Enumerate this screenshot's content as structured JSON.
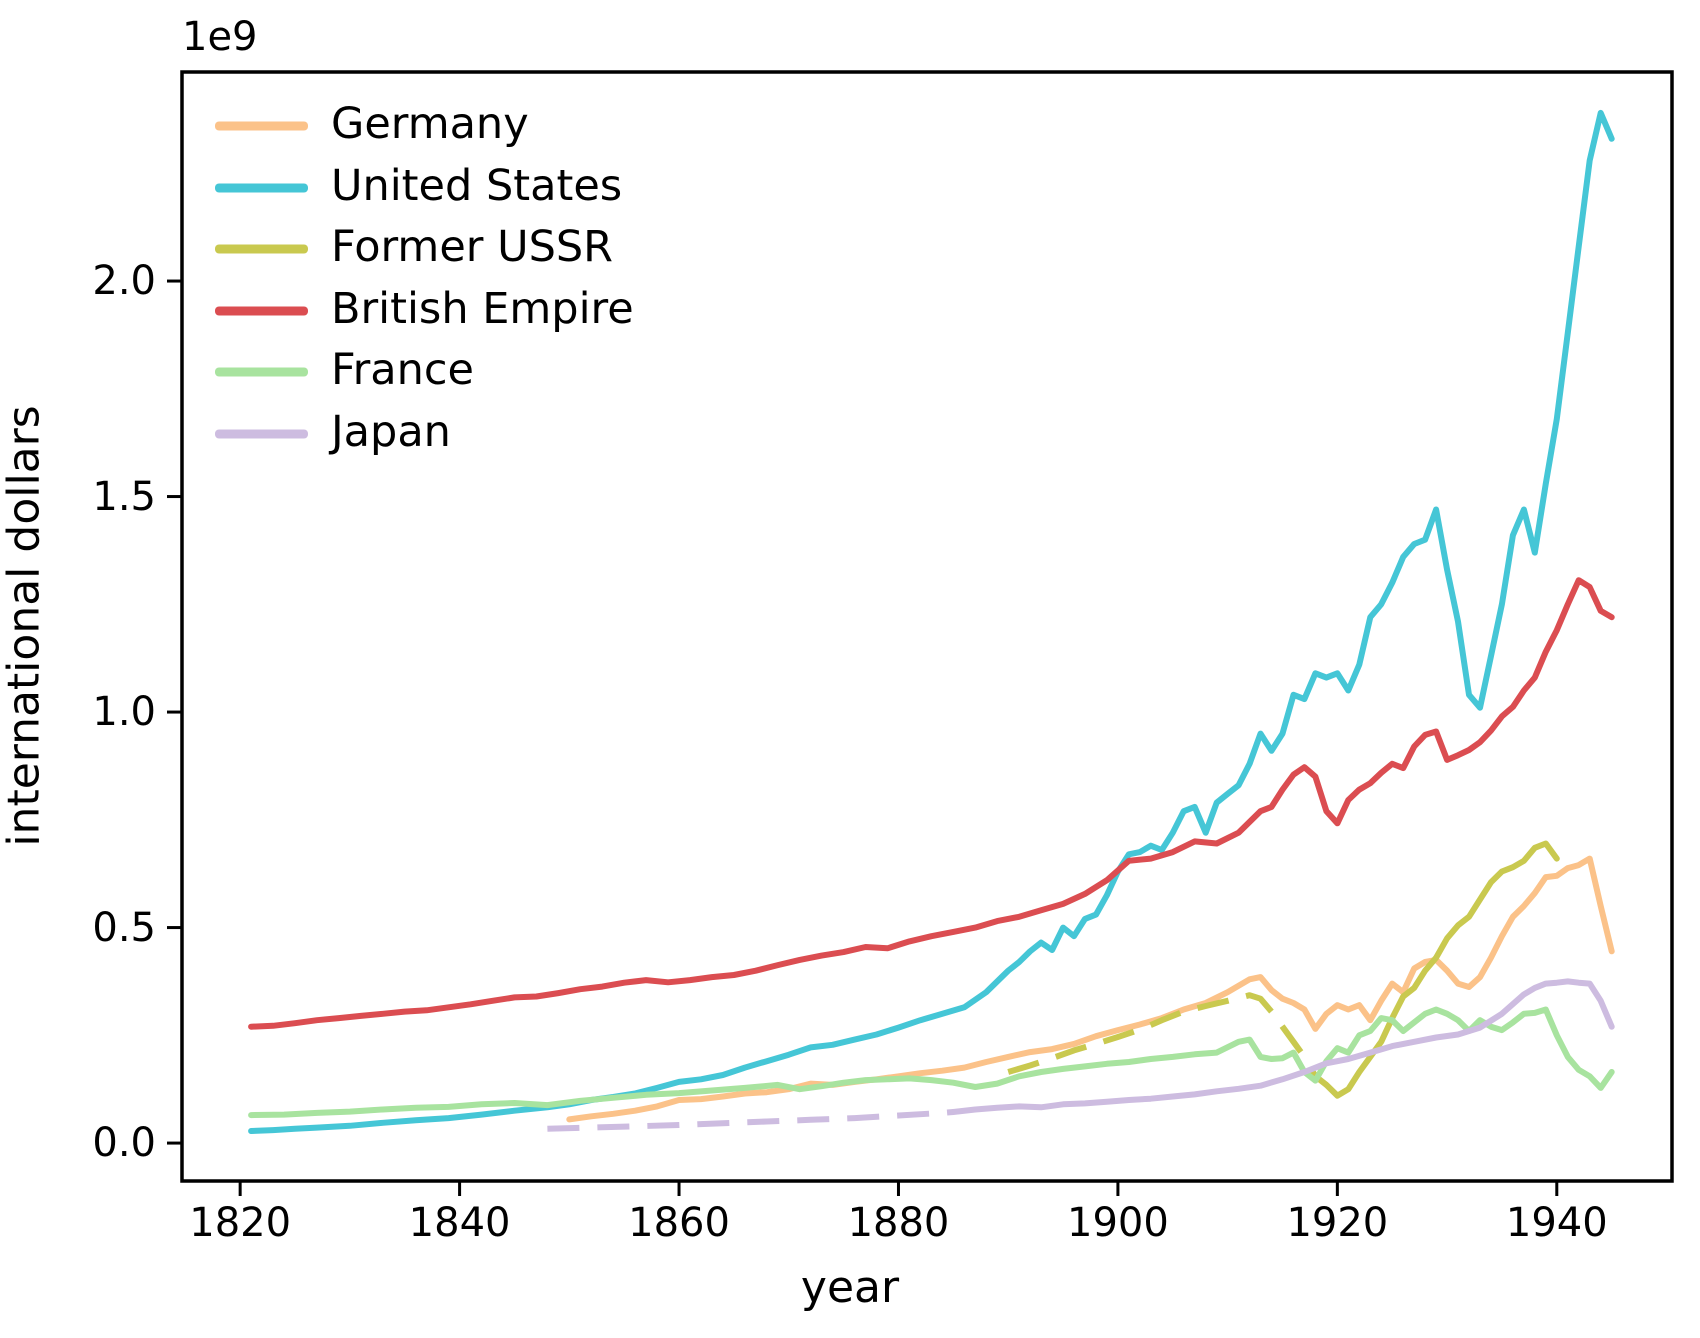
{
  "chart_data": {
    "type": "line",
    "title": "",
    "xlabel": "year",
    "ylabel": "international dollars",
    "offset_text": "1e9",
    "values_unit": "1e9 international dollars",
    "xlim": [
      1814.7,
      1950.5
    ],
    "ylim_e9": [
      -0.088,
      2.485
    ],
    "xticks": [
      1820,
      1840,
      1860,
      1880,
      1900,
      1920,
      1940
    ],
    "yticks_e9": [
      "0.0",
      "0.5",
      "1.0",
      "1.5",
      "2.0"
    ],
    "grid": false,
    "legend": {
      "position": "upper left",
      "frame": false
    },
    "series": [
      {
        "name": "Germany",
        "color": "#FBC289",
        "segments": [
          {
            "style": "solid",
            "x": [
              1850,
              1852,
              1854,
              1856,
              1858,
              1860,
              1862,
              1864,
              1866,
              1868,
              1870,
              1872,
              1874,
              1876,
              1878,
              1880,
              1882,
              1884,
              1886,
              1888,
              1890,
              1892,
              1894,
              1896,
              1898,
              1900,
              1902,
              1904,
              1906,
              1908,
              1910,
              1912,
              1913,
              1914,
              1915,
              1916,
              1917,
              1918,
              1919,
              1920,
              1921,
              1922,
              1923,
              1924,
              1925,
              1926,
              1927,
              1928,
              1929,
              1930,
              1931,
              1932,
              1933,
              1934,
              1935,
              1936,
              1937,
              1938,
              1939,
              1940,
              1941,
              1942,
              1943,
              1944,
              1945
            ],
            "y": [
              0.055,
              0.062,
              0.068,
              0.075,
              0.085,
              0.1,
              0.102,
              0.108,
              0.115,
              0.118,
              0.125,
              0.138,
              0.135,
              0.142,
              0.148,
              0.155,
              0.162,
              0.168,
              0.175,
              0.188,
              0.2,
              0.211,
              0.218,
              0.23,
              0.248,
              0.262,
              0.275,
              0.29,
              0.31,
              0.325,
              0.35,
              0.38,
              0.385,
              0.355,
              0.335,
              0.325,
              0.31,
              0.265,
              0.3,
              0.32,
              0.31,
              0.32,
              0.285,
              0.33,
              0.37,
              0.35,
              0.405,
              0.42,
              0.425,
              0.4,
              0.37,
              0.362,
              0.385,
              0.43,
              0.48,
              0.525,
              0.55,
              0.58,
              0.617,
              0.62,
              0.638,
              0.645,
              0.66,
              0.55,
              0.445
            ]
          }
        ]
      },
      {
        "name": "United States",
        "color": "#45C6D6",
        "segments": [
          {
            "style": "solid",
            "x": [
              1821,
              1823,
              1825,
              1827,
              1830,
              1833,
              1836,
              1839,
              1842,
              1845,
              1848,
              1850,
              1852,
              1854,
              1856,
              1858,
              1860,
              1862,
              1864,
              1866,
              1868,
              1870,
              1872,
              1874,
              1876,
              1878,
              1880,
              1882,
              1884,
              1886,
              1888,
              1890,
              1891,
              1892,
              1893,
              1894,
              1895,
              1896,
              1897,
              1898,
              1899,
              1900,
              1901,
              1902,
              1903,
              1904,
              1905,
              1906,
              1907,
              1908,
              1909,
              1910,
              1911,
              1912,
              1913,
              1914,
              1915,
              1916,
              1917,
              1918,
              1919,
              1920,
              1921,
              1922,
              1923,
              1924,
              1925,
              1926,
              1927,
              1928,
              1929,
              1930,
              1931,
              1932,
              1933,
              1934,
              1935,
              1936,
              1937,
              1938,
              1939,
              1940,
              1941,
              1942,
              1943,
              1944,
              1945
            ],
            "y": [
              0.028,
              0.03,
              0.033,
              0.036,
              0.04,
              0.047,
              0.053,
              0.058,
              0.066,
              0.075,
              0.083,
              0.09,
              0.1,
              0.107,
              0.115,
              0.128,
              0.142,
              0.148,
              0.158,
              0.175,
              0.19,
              0.205,
              0.222,
              0.228,
              0.24,
              0.252,
              0.268,
              0.285,
              0.3,
              0.315,
              0.35,
              0.4,
              0.42,
              0.445,
              0.465,
              0.448,
              0.5,
              0.48,
              0.52,
              0.53,
              0.575,
              0.63,
              0.67,
              0.675,
              0.69,
              0.68,
              0.72,
              0.77,
              0.78,
              0.72,
              0.79,
              0.81,
              0.83,
              0.88,
              0.95,
              0.91,
              0.95,
              1.04,
              1.03,
              1.09,
              1.08,
              1.09,
              1.05,
              1.11,
              1.22,
              1.25,
              1.3,
              1.36,
              1.39,
              1.4,
              1.47,
              1.33,
              1.21,
              1.04,
              1.01,
              1.13,
              1.25,
              1.41,
              1.47,
              1.37,
              1.53,
              1.68,
              1.88,
              2.08,
              2.28,
              2.39,
              2.33
            ]
          }
        ]
      },
      {
        "name": "Former USSR",
        "color": "#C9C94F",
        "segments": [
          {
            "style": "dashed",
            "x": [
              1890,
              1892,
              1894,
              1896,
              1898,
              1900,
              1902,
              1904,
              1906,
              1908,
              1910,
              1912,
              1913,
              1914,
              1915,
              1916,
              1917,
              1918,
              1919
            ],
            "y": [
              0.165,
              0.18,
              0.197,
              0.215,
              0.23,
              0.246,
              0.263,
              0.285,
              0.305,
              0.318,
              0.33,
              0.343,
              0.335,
              0.305,
              0.27,
              0.235,
              0.2,
              0.155,
              0.135
            ]
          },
          {
            "style": "solid",
            "x": [
              1919,
              1920,
              1921,
              1922,
              1923,
              1924,
              1925,
              1926,
              1927,
              1928,
              1929,
              1930,
              1931,
              1932,
              1933,
              1934,
              1935,
              1936,
              1937,
              1938,
              1939,
              1940
            ],
            "y": [
              0.135,
              0.11,
              0.125,
              0.165,
              0.2,
              0.235,
              0.29,
              0.34,
              0.36,
              0.4,
              0.43,
              0.475,
              0.505,
              0.525,
              0.565,
              0.605,
              0.63,
              0.64,
              0.655,
              0.685,
              0.695,
              0.66
            ]
          }
        ]
      },
      {
        "name": "British Empire",
        "color": "#DB4D51",
        "segments": [
          {
            "style": "solid",
            "x": [
              1821,
              1823,
              1825,
              1827,
              1829,
              1831,
              1833,
              1835,
              1837,
              1839,
              1841,
              1843,
              1845,
              1847,
              1849,
              1851,
              1853,
              1855,
              1857,
              1859,
              1861,
              1863,
              1865,
              1867,
              1869,
              1871,
              1873,
              1875,
              1877,
              1879,
              1881,
              1883,
              1885,
              1887,
              1889,
              1891,
              1893,
              1895,
              1897,
              1899,
              1901,
              1903,
              1905,
              1907,
              1909,
              1911,
              1913,
              1914,
              1915,
              1916,
              1917,
              1918,
              1919,
              1920,
              1921,
              1922,
              1923,
              1924,
              1925,
              1926,
              1927,
              1928,
              1929,
              1930,
              1931,
              1932,
              1933,
              1934,
              1935,
              1936,
              1937,
              1938,
              1939,
              1940,
              1941,
              1942,
              1943,
              1944,
              1945
            ],
            "y": [
              0.27,
              0.272,
              0.278,
              0.285,
              0.29,
              0.295,
              0.3,
              0.305,
              0.308,
              0.315,
              0.322,
              0.33,
              0.338,
              0.34,
              0.348,
              0.357,
              0.363,
              0.372,
              0.378,
              0.373,
              0.378,
              0.385,
              0.39,
              0.4,
              0.413,
              0.425,
              0.435,
              0.443,
              0.455,
              0.452,
              0.468,
              0.48,
              0.49,
              0.5,
              0.515,
              0.525,
              0.54,
              0.555,
              0.578,
              0.61,
              0.655,
              0.66,
              0.675,
              0.7,
              0.695,
              0.72,
              0.77,
              0.78,
              0.82,
              0.855,
              0.872,
              0.85,
              0.77,
              0.742,
              0.796,
              0.82,
              0.835,
              0.859,
              0.88,
              0.87,
              0.92,
              0.947,
              0.955,
              0.889,
              0.9,
              0.912,
              0.93,
              0.957,
              0.99,
              1.012,
              1.05,
              1.08,
              1.14,
              1.19,
              1.25,
              1.306,
              1.29,
              1.235,
              1.22
            ]
          }
        ]
      },
      {
        "name": "France",
        "color": "#A8E39F",
        "segments": [
          {
            "style": "solid",
            "x": [
              1821,
              1824,
              1827,
              1830,
              1833,
              1836,
              1839,
              1842,
              1845,
              1848,
              1851,
              1854,
              1857,
              1860,
              1863,
              1866,
              1869,
              1871,
              1873,
              1875,
              1877,
              1879,
              1881,
              1883,
              1885,
              1887,
              1889,
              1891,
              1893,
              1895,
              1897,
              1899,
              1901,
              1903,
              1905,
              1907,
              1909,
              1911,
              1912,
              1913,
              1914,
              1915,
              1916,
              1917,
              1918,
              1919,
              1920,
              1921,
              1922,
              1923,
              1924,
              1925,
              1926,
              1927,
              1928,
              1929,
              1930,
              1931,
              1932,
              1933,
              1934,
              1935,
              1936,
              1937,
              1938,
              1939,
              1940,
              1941,
              1942,
              1943,
              1944,
              1945
            ],
            "y": [
              0.065,
              0.066,
              0.07,
              0.073,
              0.078,
              0.082,
              0.084,
              0.09,
              0.093,
              0.088,
              0.098,
              0.105,
              0.112,
              0.116,
              0.122,
              0.128,
              0.135,
              0.125,
              0.132,
              0.14,
              0.146,
              0.148,
              0.15,
              0.146,
              0.14,
              0.13,
              0.138,
              0.155,
              0.165,
              0.172,
              0.178,
              0.184,
              0.188,
              0.195,
              0.2,
              0.206,
              0.21,
              0.235,
              0.24,
              0.2,
              0.195,
              0.197,
              0.21,
              0.165,
              0.145,
              0.19,
              0.22,
              0.21,
              0.25,
              0.26,
              0.29,
              0.285,
              0.26,
              0.28,
              0.3,
              0.31,
              0.3,
              0.285,
              0.26,
              0.285,
              0.27,
              0.262,
              0.28,
              0.3,
              0.302,
              0.31,
              0.25,
              0.2,
              0.17,
              0.155,
              0.128,
              0.165
            ]
          }
        ]
      },
      {
        "name": "Japan",
        "color": "#CDBCE0",
        "segments": [
          {
            "style": "dashed",
            "x": [
              1848,
              1852,
              1856,
              1860,
              1864,
              1868,
              1872,
              1876,
              1880,
              1884,
              1885
            ],
            "y": [
              0.033,
              0.036,
              0.039,
              0.042,
              0.046,
              0.05,
              0.054,
              0.058,
              0.064,
              0.07,
              0.072
            ]
          },
          {
            "style": "solid",
            "x": [
              1885,
              1887,
              1889,
              1891,
              1893,
              1895,
              1897,
              1899,
              1901,
              1903,
              1905,
              1907,
              1909,
              1911,
              1913,
              1915,
              1917,
              1919,
              1921,
              1923,
              1925,
              1927,
              1929,
              1931,
              1933,
              1935,
              1937,
              1938,
              1939,
              1940,
              1941,
              1942,
              1943,
              1944,
              1945
            ],
            "y": [
              0.072,
              0.078,
              0.082,
              0.085,
              0.083,
              0.09,
              0.092,
              0.096,
              0.1,
              0.103,
              0.108,
              0.113,
              0.12,
              0.126,
              0.133,
              0.148,
              0.165,
              0.185,
              0.195,
              0.21,
              0.225,
              0.235,
              0.245,
              0.252,
              0.268,
              0.3,
              0.345,
              0.36,
              0.37,
              0.372,
              0.375,
              0.372,
              0.37,
              0.33,
              0.27
            ]
          }
        ]
      }
    ]
  },
  "axes_style": {
    "spine_color": "#000000",
    "tick_color": "#000000",
    "background": "#ffffff"
  }
}
